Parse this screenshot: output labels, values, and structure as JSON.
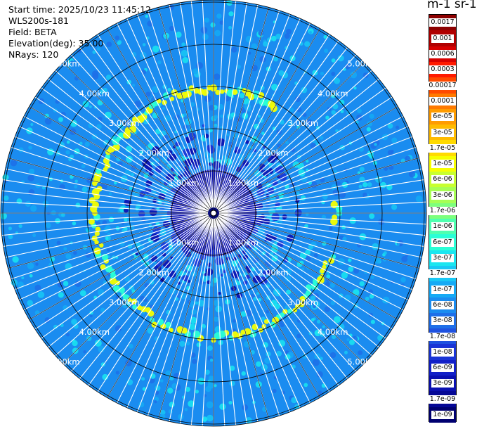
{
  "info": {
    "start_time": "Start time: 2025/10/23 11:45:12",
    "instrument": "WLS200s-181",
    "field": "Field: BETA",
    "elevation": "Elevation(deg): 35.00",
    "nrays": "NRays: 120"
  },
  "colorbar": {
    "unit_label": "m-1 sr-1",
    "levels": [
      {
        "label": "0.0017",
        "color": "#8b0000"
      },
      {
        "label": "0.001",
        "color": "#b00000"
      },
      {
        "label": "0.0006",
        "color": "#d80000"
      },
      {
        "label": "0.0003",
        "color": "#ff1a00"
      },
      {
        "label": "0.00017",
        "color": "#ff4a00"
      },
      {
        "label": "0.0001",
        "color": "#ff7a00"
      },
      {
        "label": "6e-05",
        "color": "#ff9c00"
      },
      {
        "label": "3e-05",
        "color": "#ffbb00"
      },
      {
        "label": "1.7e-05",
        "color": "#ffda00"
      },
      {
        "label": "1e-05",
        "color": "#f6ff00"
      },
      {
        "label": "6e-06",
        "color": "#c8ff30"
      },
      {
        "label": "3e-06",
        "color": "#a6ff55"
      },
      {
        "label": "1.7e-06",
        "color": "#7dff7d"
      },
      {
        "label": "1e-06",
        "color": "#4fffb0"
      },
      {
        "label": "6e-07",
        "color": "#2affd6"
      },
      {
        "label": "3e-07",
        "color": "#1ae6f0"
      },
      {
        "label": "1.7e-07",
        "color": "#19c8f5"
      },
      {
        "label": "1e-07",
        "color": "#15aaf5"
      },
      {
        "label": "6e-08",
        "color": "#1a8cf0"
      },
      {
        "label": "3e-08",
        "color": "#1e6fe8"
      },
      {
        "label": "1.7e-08",
        "color": "#1f52e0"
      },
      {
        "label": "1e-08",
        "color": "#1a35d6"
      },
      {
        "label": "6e-09",
        "color": "#1220c8"
      },
      {
        "label": "3e-09",
        "color": "#0a10b0"
      },
      {
        "label": "1.7e-09",
        "color": "#050896"
      },
      {
        "label": "1e-09",
        "color": "#000070"
      }
    ]
  },
  "chart_data": {
    "type": "heatmap",
    "projection": "polar PPI scan",
    "field": "BETA",
    "elevation_deg": 35.0,
    "n_rays": 120,
    "range_km": [
      0,
      5.5
    ],
    "range_rings_km": [
      1.0,
      2.0,
      3.0,
      4.0,
      5.0
    ],
    "ring_labels": [
      "1.00km",
      "2.00km",
      "3.00km",
      "4.00km",
      "5.00km"
    ],
    "label_diagonals": [
      "upper-left",
      "upper-right",
      "lower-left",
      "lower-right"
    ],
    "scale": "log",
    "value_range": [
      1e-09,
      0.0017
    ],
    "background_level": "6e-08",
    "inner_level": "3e-09",
    "feature_ring": {
      "range_km": 3.0,
      "level": "1e-05",
      "fraction_of_azimuths": 0.6
    },
    "azimuth_gridlines_deg": [
      0,
      15,
      30,
      45,
      60,
      75,
      90,
      105,
      120,
      135,
      150,
      165,
      180,
      195,
      210,
      225,
      240,
      255,
      270,
      285,
      300,
      315,
      330,
      345
    ]
  }
}
